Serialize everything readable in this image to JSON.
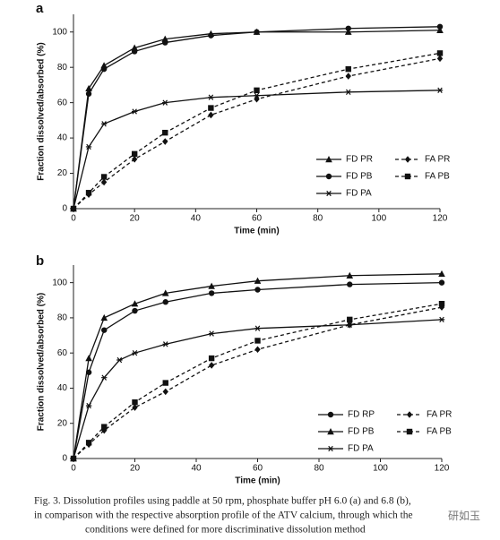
{
  "chart_data": [
    {
      "type": "line",
      "panel": "a",
      "xlabel": "Time (min)",
      "ylabel": "Fraction dissolved/absorbed (%)",
      "x": [
        0,
        5,
        10,
        20,
        30,
        45,
        60,
        90,
        120
      ],
      "xlim": [
        0,
        120
      ],
      "xticks": [
        0,
        20,
        40,
        60,
        80,
        100,
        120
      ],
      "ylim": [
        0,
        110
      ],
      "yticks": [
        0,
        20,
        40,
        60,
        80,
        100
      ],
      "grid": false,
      "legend": "lower right",
      "series": [
        {
          "name": "FD PR",
          "color": "#111111",
          "marker": "triangle",
          "dashed": false,
          "values": [
            0,
            68,
            81,
            91,
            96,
            99,
            100,
            100,
            101
          ]
        },
        {
          "name": "FA PR",
          "color": "#111111",
          "marker": "diamond",
          "dashed": true,
          "values": [
            0,
            8,
            15,
            28,
            38,
            53,
            62,
            75,
            85
          ]
        },
        {
          "name": "FD PB",
          "color": "#111111",
          "marker": "circle",
          "dashed": false,
          "values": [
            0,
            65,
            79,
            89,
            94,
            98,
            100,
            102,
            103
          ]
        },
        {
          "name": "FA PB",
          "color": "#111111",
          "marker": "square",
          "dashed": true,
          "values": [
            0,
            9,
            18,
            31,
            43,
            57,
            67,
            79,
            88
          ]
        },
        {
          "name": "FD PA",
          "color": "#111111",
          "marker": "star",
          "dashed": false,
          "values": [
            0,
            35,
            48,
            55,
            60,
            63,
            64,
            66,
            67
          ]
        }
      ]
    },
    {
      "type": "line",
      "panel": "b",
      "xlabel": "Time (min)",
      "ylabel": "Fraction dissolved/absorbed (%)",
      "x": [
        0,
        5,
        10,
        20,
        30,
        45,
        60,
        90,
        120
      ],
      "xlim": [
        0,
        120
      ],
      "xticks": [
        0,
        20,
        40,
        60,
        80,
        100,
        120
      ],
      "ylim": [
        0,
        110
      ],
      "yticks": [
        0,
        20,
        40,
        60,
        80,
        100
      ],
      "grid": false,
      "legend": "lower right",
      "series": [
        {
          "name": "FD RP",
          "color": "#111111",
          "marker": "circle",
          "dashed": false,
          "values": [
            0,
            49,
            73,
            84,
            89,
            94,
            96,
            99,
            100
          ]
        },
        {
          "name": "FA PR",
          "color": "#111111",
          "marker": "diamond",
          "dashed": true,
          "values": [
            0,
            8,
            16,
            29,
            38,
            53,
            62,
            76,
            86
          ]
        },
        {
          "name": "FD PB",
          "color": "#111111",
          "marker": "triangle",
          "dashed": false,
          "values": [
            0,
            57,
            80,
            88,
            94,
            98,
            101,
            104,
            105
          ]
        },
        {
          "name": "FA PB",
          "color": "#111111",
          "marker": "square",
          "dashed": true,
          "values": [
            0,
            9,
            18,
            32,
            43,
            57,
            67,
            79,
            88
          ]
        },
        {
          "name": "FD PA",
          "color": "#111111",
          "marker": "star",
          "dashed": false,
          "x": [
            0,
            5,
            10,
            15,
            20,
            30,
            45,
            60,
            90,
            120
          ],
          "values": [
            0,
            30,
            46,
            56,
            60,
            65,
            71,
            74,
            76,
            79
          ]
        }
      ]
    }
  ],
  "caption": [
    "Fig. 3.  Dissolution profiles using paddle at 50 rpm, phosphate buffer pH 6.0 (a) and 6.8 (b),",
    "in comparison with the respective absorption profile of the ATV calcium, through which the",
    "conditions were defined for more discriminative dissolution method"
  ],
  "watermark": "研如玉"
}
